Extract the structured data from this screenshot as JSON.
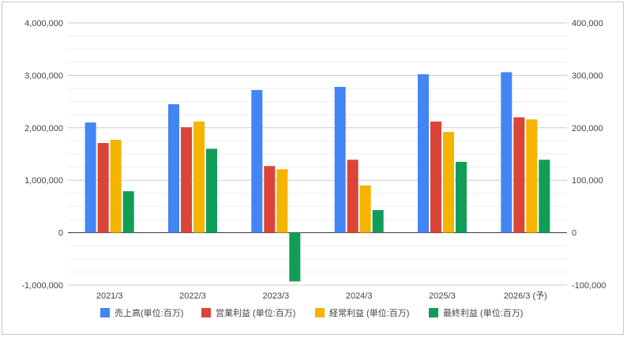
{
  "chart_data": {
    "type": "bar",
    "categories": [
      "2021/3",
      "2022/3",
      "2023/3",
      "2024/3",
      "2025/3",
      "2026/3 (予)"
    ],
    "series": [
      {
        "name": "売上高(単位:百万)",
        "axis": "left",
        "color": "#4285F4",
        "values": [
          2100000,
          2450000,
          2720000,
          2780000,
          3020000,
          3060000
        ]
      },
      {
        "name": "営業利益 (単位:百万)",
        "axis": "right",
        "color": "#DB4437",
        "values": [
          171000,
          201000,
          127000,
          139000,
          212000,
          220000
        ]
      },
      {
        "name": "経常利益 (単位:百万)",
        "axis": "right",
        "color": "#F4B400",
        "values": [
          177000,
          212000,
          121000,
          90000,
          192000,
          216000
        ]
      },
      {
        "name": "最終利益 (単位:百万)",
        "axis": "right",
        "color": "#0F9D58",
        "values": [
          79000,
          160000,
          -93000,
          43000,
          135000,
          139000
        ]
      }
    ],
    "y_left": {
      "range": [
        -1000000,
        4000000
      ],
      "tick_values": [
        -1000000,
        0,
        1000000,
        2000000,
        3000000,
        4000000
      ],
      "tick_labels": [
        "-1,000,000",
        "0",
        "1,000,000",
        "2,000,000",
        "3,000,000",
        "4,000,000"
      ]
    },
    "y_right": {
      "range": [
        -100000,
        400000
      ],
      "tick_values": [
        -100000,
        0,
        100000,
        200000,
        300000,
        400000
      ],
      "tick_labels": [
        "-100,000",
        "0",
        "100,000",
        "200,000",
        "300,000",
        "400,000"
      ]
    },
    "grid": true,
    "legend_position": "bottom"
  }
}
